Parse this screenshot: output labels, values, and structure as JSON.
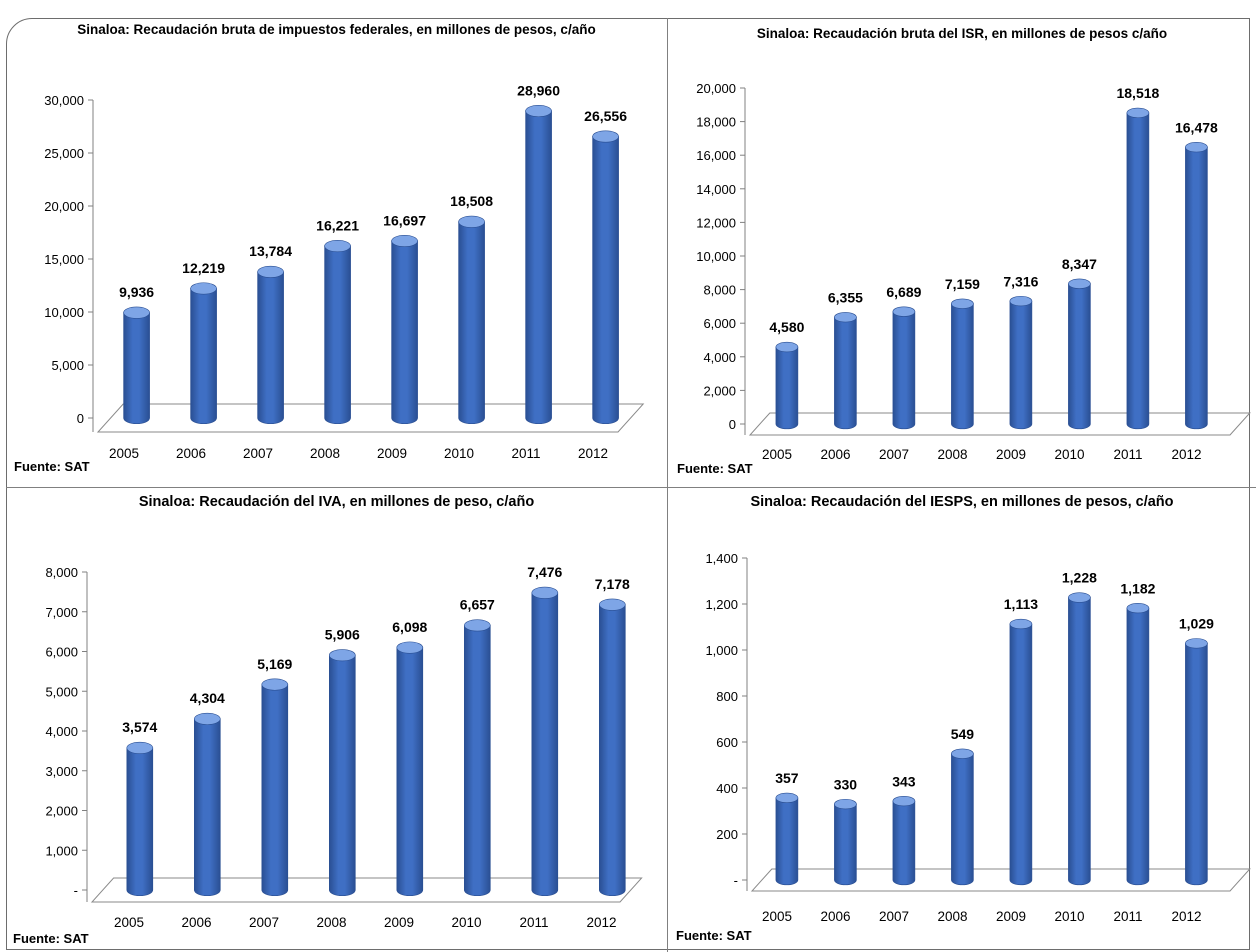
{
  "colors": {
    "bar_front": "#3f6fc4",
    "bar_side": "#2a4f93",
    "bar_top": "#7ea5e6",
    "floor_line": "#8a8a8a",
    "background": "#ffffff"
  },
  "chart_data": [
    {
      "type": "bar",
      "title": "Sinaloa: Recaudación  bruta de impuestos federales, en millones de pesos, c/año",
      "categories": [
        "2005",
        "2006",
        "2007",
        "2008",
        "2009",
        "2010",
        "2011",
        "2012"
      ],
      "values": [
        9936,
        12219,
        13784,
        16221,
        16697,
        18508,
        28960,
        26556
      ],
      "value_labels": [
        "9,936",
        "12,219",
        "13,784",
        "16,221",
        "16,697",
        "18,508",
        "28,960",
        "26,556"
      ],
      "yticks": [
        "0",
        "5,000",
        "10,000",
        "15,000",
        "20,000",
        "25,000",
        "30,000"
      ],
      "ylim": [
        0,
        30000
      ],
      "source": "Fuente: SAT",
      "grid": false,
      "style": "3d-cylinder"
    },
    {
      "type": "bar",
      "title": "Sinaloa: Recaudación  bruta del ISR, en millones de pesos c/año",
      "categories": [
        "2005",
        "2006",
        "2007",
        "2008",
        "2009",
        "2010",
        "2011",
        "2012"
      ],
      "values": [
        4580,
        6355,
        6689,
        7159,
        7316,
        8347,
        18518,
        16478
      ],
      "value_labels": [
        "4,580",
        "6,355",
        "6,689",
        "7,159",
        "7,316",
        "8,347",
        "18,518",
        "16,478"
      ],
      "yticks": [
        "0",
        "2,000",
        "4,000",
        "6,000",
        "8,000",
        "10,000",
        "12,000",
        "14,000",
        "16,000",
        "18,000",
        "20,000"
      ],
      "ylim": [
        0,
        20000
      ],
      "source": "Fuente: SAT",
      "grid": false,
      "style": "3d-cylinder"
    },
    {
      "type": "bar",
      "title": "Sinaloa: Recaudación del IVA, en millones de peso, c/año",
      "categories": [
        "2005",
        "2006",
        "2007",
        "2008",
        "2009",
        "2010",
        "2011",
        "2012"
      ],
      "values": [
        3574,
        4304,
        5169,
        5906,
        6098,
        6657,
        7476,
        7178
      ],
      "value_labels": [
        "3,574",
        "4,304",
        "5,169",
        "5,906",
        "6,098",
        "6,657",
        "7,476",
        "7,178"
      ],
      "yticks": [
        "-",
        "1,000",
        "2,000",
        "3,000",
        "4,000",
        "5,000",
        "6,000",
        "7,000",
        "8,000"
      ],
      "ylim": [
        0,
        8000
      ],
      "source": "Fuente: SAT",
      "grid": false,
      "style": "3d-cylinder"
    },
    {
      "type": "bar",
      "title": "Sinaloa: Recaudación del IESPS, en millones de pesos, c/año",
      "categories": [
        "2005",
        "2006",
        "2007",
        "2008",
        "2009",
        "2010",
        "2011",
        "2012"
      ],
      "values": [
        357,
        330,
        343,
        549,
        1113,
        1228,
        1182,
        1029
      ],
      "value_labels": [
        "357",
        "330",
        "343",
        "549",
        "1,113",
        "1,228",
        "1,182",
        "1,029"
      ],
      "yticks": [
        "-",
        "200",
        "400",
        "600",
        "800",
        "1,000",
        "1,200",
        "1,400"
      ],
      "ylim": [
        0,
        1400
      ],
      "source": "Fuente: SAT",
      "grid": false,
      "style": "3d-cylinder"
    }
  ]
}
